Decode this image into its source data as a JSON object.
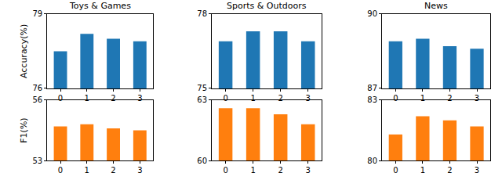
{
  "chart_data": [
    {
      "type": "bar",
      "title": "Toys & Games",
      "y_label": "Accuracy(%)",
      "x": [
        0,
        1,
        2,
        3
      ],
      "values": [
        77.5,
        78.2,
        78.0,
        77.9
      ],
      "color": "#1f77b4",
      "xlim": [
        -0.5,
        3.5
      ],
      "xticks": [
        0,
        1,
        2,
        3
      ],
      "ylim": [
        76,
        79
      ],
      "yticks": [
        76,
        79
      ]
    },
    {
      "type": "bar",
      "title": "Sports & Outdoors",
      "x": [
        0,
        1,
        2,
        3
      ],
      "values": [
        76.9,
        77.3,
        77.3,
        76.9
      ],
      "color": "#1f77b4",
      "xlim": [
        -0.5,
        3.5
      ],
      "xticks": [
        0,
        1,
        2,
        3
      ],
      "ylim": [
        75,
        78
      ],
      "yticks": [
        75,
        78
      ]
    },
    {
      "type": "bar",
      "title": "News",
      "x": [
        0,
        1,
        2,
        3
      ],
      "values": [
        88.9,
        89.0,
        88.7,
        88.6
      ],
      "color": "#1f77b4",
      "xlim": [
        -0.5,
        3.5
      ],
      "xticks": [
        0,
        1,
        2,
        3
      ],
      "ylim": [
        87,
        90
      ],
      "yticks": [
        87,
        90
      ]
    },
    {
      "type": "bar",
      "y_label": "F1(%)",
      "x": [
        0,
        1,
        2,
        3
      ],
      "values": [
        54.7,
        54.8,
        54.6,
        54.5
      ],
      "color": "#ff7f0e",
      "xlim": [
        -0.5,
        3.5
      ],
      "xticks": [
        0,
        1,
        2,
        3
      ],
      "ylim": [
        53,
        56
      ],
      "yticks": [
        53,
        56
      ]
    },
    {
      "type": "bar",
      "x": [
        0,
        1,
        2,
        3
      ],
      "values": [
        62.6,
        62.6,
        62.3,
        61.8
      ],
      "color": "#ff7f0e",
      "xlim": [
        -0.5,
        3.5
      ],
      "xticks": [
        0,
        1,
        2,
        3
      ],
      "ylim": [
        60,
        63
      ],
      "yticks": [
        60,
        63
      ]
    },
    {
      "type": "bar",
      "x": [
        0,
        1,
        2,
        3
      ],
      "values": [
        81.3,
        82.2,
        82.0,
        81.7
      ],
      "color": "#ff7f0e",
      "xlim": [
        -0.5,
        3.5
      ],
      "xticks": [
        0,
        1,
        2,
        3
      ],
      "ylim": [
        80,
        83
      ],
      "yticks": [
        80,
        83
      ]
    }
  ]
}
